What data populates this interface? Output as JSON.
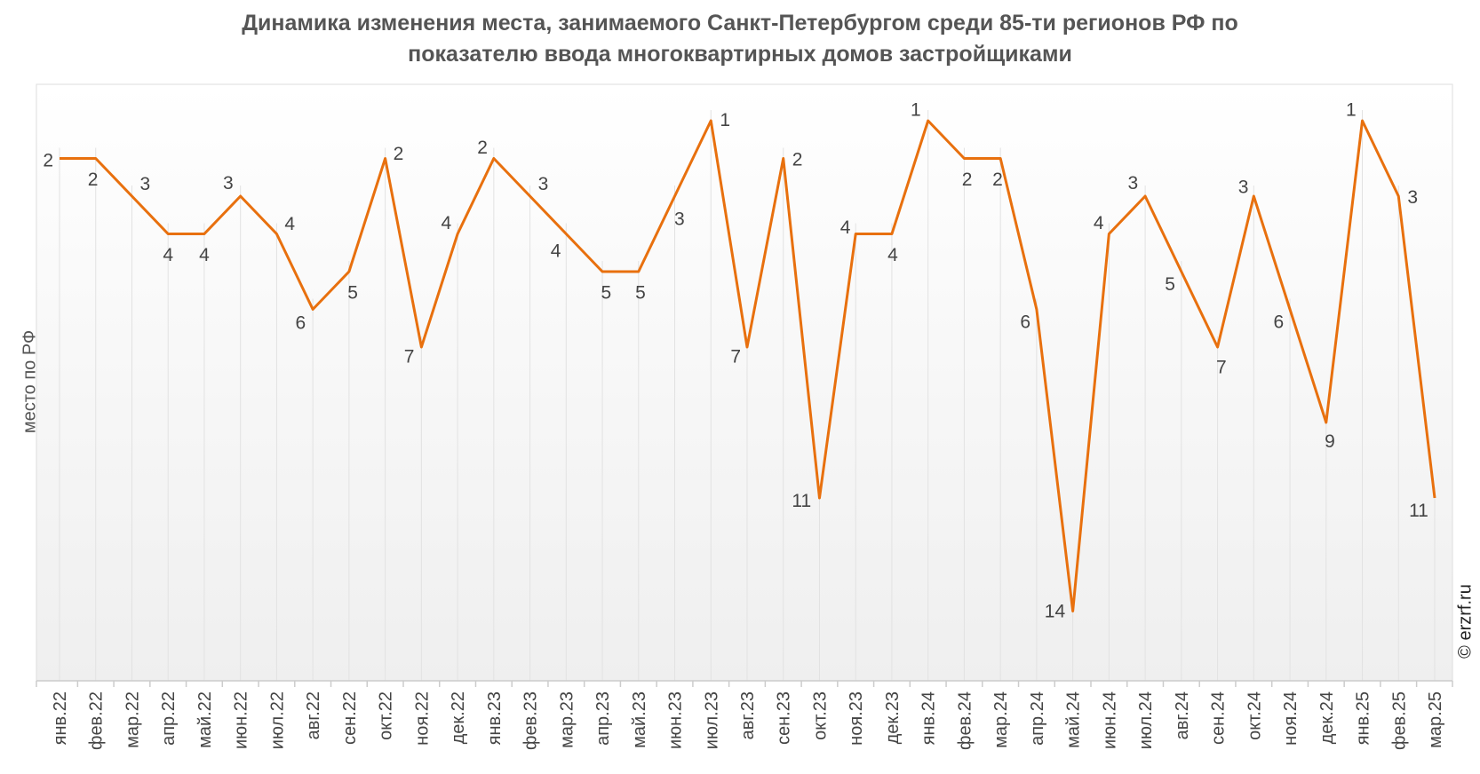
{
  "chart_data": {
    "type": "line",
    "title_line1": "Динамика изменения места, занимаемого Санкт-Петербургом среди 85-ти регионов РФ по",
    "title_line2": "показателю ввода многоквартирных домов застройщиками",
    "ylabel": "место по РФ",
    "xlabel": "",
    "y_inverted": true,
    "ylim": [
      1,
      15
    ],
    "categories": [
      "янв.22",
      "фев.22",
      "мар.22",
      "апр.22",
      "май.22",
      "июн.22",
      "июл.22",
      "авг.22",
      "сен.22",
      "окт.22",
      "ноя.22",
      "дек.22",
      "янв.23",
      "фев.23",
      "мар.23",
      "апр.23",
      "май.23",
      "июн.23",
      "июл.23",
      "авг.23",
      "сен.23",
      "окт.23",
      "ноя.23",
      "дек.23",
      "янв.24",
      "фев.24",
      "мар.24",
      "апр.24",
      "май.24",
      "июн.24",
      "июл.24",
      "авг.24",
      "сен.24",
      "окт.24",
      "ноя.24",
      "дек.24",
      "янв.25",
      "фев.25",
      "мар.25"
    ],
    "series": [
      {
        "name": "место",
        "color": "#e8700e",
        "values": [
          2,
          2,
          3,
          4,
          4,
          3,
          4,
          6,
          5,
          2,
          7,
          4,
          2,
          3,
          4,
          5,
          5,
          3,
          1,
          7,
          2,
          11,
          4,
          4,
          1,
          2,
          2,
          6,
          14,
          4,
          3,
          5,
          7,
          3,
          6,
          9,
          1,
          3,
          11
        ]
      }
    ],
    "grid": true,
    "legend": "none"
  },
  "copyright": "© erzrf.ru"
}
